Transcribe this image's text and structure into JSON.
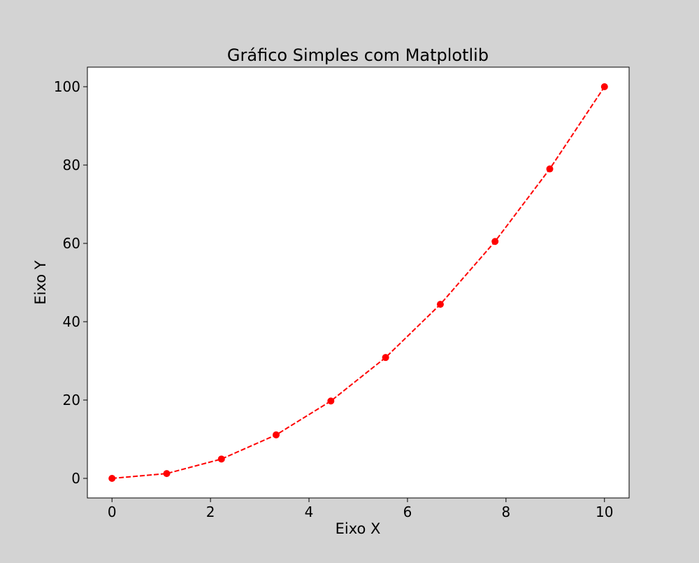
{
  "chart_data": {
    "type": "line",
    "title": "Gráfico Simples com Matplotlib",
    "xlabel": "Eixo X",
    "ylabel": "Eixo Y",
    "xlim": [
      -0.5,
      10.5
    ],
    "ylim": [
      -5,
      105
    ],
    "grid": false,
    "xticks": [
      0,
      2,
      4,
      6,
      8,
      10
    ],
    "yticks": [
      0,
      20,
      40,
      60,
      80,
      100
    ],
    "series": [
      {
        "x": [
          0,
          1.111,
          2.222,
          3.333,
          4.444,
          5.556,
          6.667,
          7.778,
          8.889,
          10
        ],
        "y": [
          0,
          1.23,
          4.94,
          11.11,
          19.75,
          30.86,
          44.44,
          60.49,
          79.01,
          100
        ],
        "color": "#ff0000",
        "line_style": "dashed",
        "marker": "circle"
      }
    ]
  }
}
